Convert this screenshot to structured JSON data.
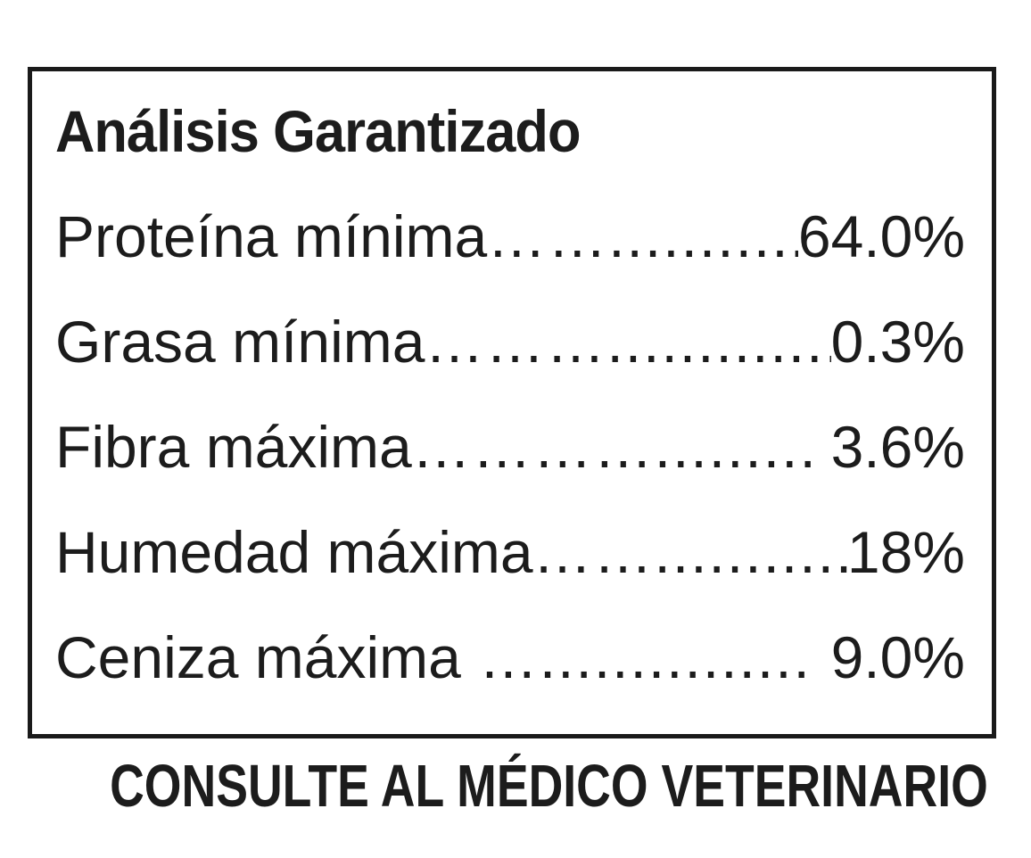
{
  "panel": {
    "title": "Análisis Garantizado",
    "rows": [
      {
        "label": "Proteína mínima",
        "leader": "……..............................",
        "value": "64.0%"
      },
      {
        "label": "Grasa mínima",
        "leader": "………............................",
        "value": "0.3%"
      },
      {
        "label": "Fibra máxima",
        "leader": "…………..........................",
        "value": "3.6%"
      },
      {
        "label": "Humedad máxima",
        "leader": "……..............................",
        "value": "18%"
      },
      {
        "label": "Ceniza máxima",
        "leader": "…...............…..............",
        "value": "9.0%"
      }
    ]
  },
  "footer": {
    "text": "CONSULTE AL MÉDICO VETERINARIO"
  },
  "colors": {
    "ink": "#1c1c1c",
    "border": "#1a1a1a",
    "background": "#ffffff"
  }
}
